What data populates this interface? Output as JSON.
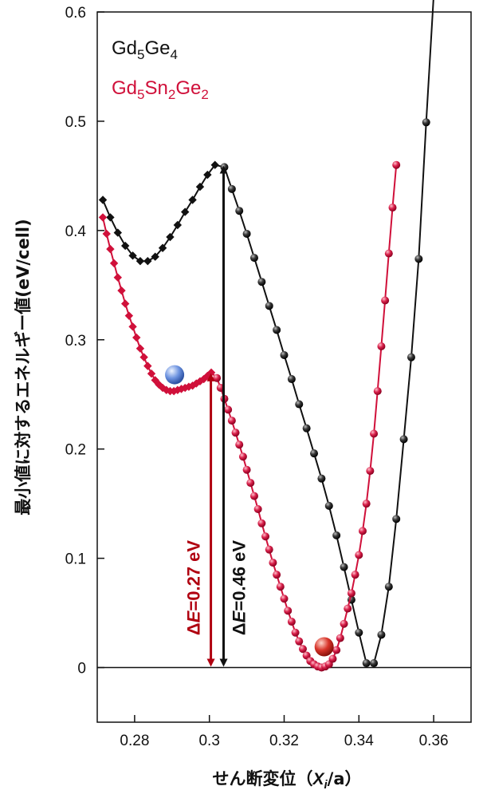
{
  "chart_data": {
    "type": "line",
    "xlabel": "せん断変位（Xi/a）",
    "xlabel_prefix": "せん断変位（",
    "xlabel_var": "X",
    "xlabel_sub": "i",
    "xlabel_suffix": "/a）",
    "ylabel": "最小値に対するエネルギー値(eV/cell)",
    "xlim": [
      0.27,
      0.37
    ],
    "ylim": [
      -0.05,
      0.6
    ],
    "xticks": [
      0.28,
      0.3,
      0.32,
      0.34,
      0.36
    ],
    "xtick_labels": [
      "0.28",
      "0.3",
      "0.32",
      "0.34",
      "0.36"
    ],
    "yticks": [
      0,
      0.1,
      0.2,
      0.3,
      0.4,
      0.5,
      0.6
    ],
    "ytick_labels": [
      "0",
      "0.1",
      "0.2",
      "0.3",
      "0.4",
      "0.5",
      "0.6"
    ],
    "grid": false,
    "legend_position": "top-left",
    "zero_line": true,
    "series": [
      {
        "name": "Gd5Ge4",
        "legend_parts": [
          [
            "Gd",
            ""
          ],
          [
            "5",
            "sub"
          ],
          [
            "Ge",
            ""
          ],
          [
            "4",
            "sub"
          ]
        ],
        "color": "#111111",
        "markers": [
          {
            "shape": "diamond",
            "x": [
              0.2715,
              0.2735,
              0.2755,
              0.2775,
              0.2795,
              0.2815,
              0.2835,
              0.2855,
              0.2875,
              0.2895,
              0.2915,
              0.2935,
              0.2955,
              0.2975,
              0.2995,
              0.3015
            ],
            "y": [
              0.428,
              0.412,
              0.398,
              0.386,
              0.377,
              0.372,
              0.372,
              0.376,
              0.384,
              0.394,
              0.405,
              0.417,
              0.428,
              0.44,
              0.451,
              0.46
            ]
          },
          {
            "shape": "sphere",
            "x": [
              0.304,
              0.306,
              0.308,
              0.31,
              0.312,
              0.314,
              0.316,
              0.318,
              0.32,
              0.322,
              0.324,
              0.326,
              0.328,
              0.33,
              0.332,
              0.334,
              0.336,
              0.338,
              0.34,
              0.342,
              0.344,
              0.346,
              0.348,
              0.35,
              0.352,
              0.354,
              0.356,
              0.358,
              0.36
            ],
            "y": [
              0.458,
              0.438,
              0.418,
              0.397,
              0.375,
              0.353,
              0.331,
              0.309,
              0.286,
              0.264,
              0.241,
              0.219,
              0.196,
              0.173,
              0.148,
              0.121,
              0.092,
              0.062,
              0.032,
              0.004,
              0.004,
              0.03,
              0.074,
              0.136,
              0.209,
              0.284,
              0.374,
              0.499,
              0.615
            ]
          }
        ]
      },
      {
        "name": "Gd5Sn2Ge2",
        "legend_parts": [
          [
            "Gd",
            ""
          ],
          [
            "5",
            "sub"
          ],
          [
            "Sn",
            ""
          ],
          [
            "2",
            "sub"
          ],
          [
            "Ge",
            ""
          ],
          [
            "2",
            "sub"
          ]
        ],
        "color": "#d0103a",
        "markers": [
          {
            "shape": "diamond",
            "x": [
              0.2715,
              0.2725,
              0.2735,
              0.2745,
              0.2755,
              0.2765,
              0.2775,
              0.2785,
              0.2795,
              0.2805,
              0.2815,
              0.2825,
              0.2835,
              0.2845,
              0.2855,
              0.2865,
              0.2875,
              0.2885,
              0.2895,
              0.2905,
              0.2915,
              0.2925,
              0.2935,
              0.2945,
              0.2955,
              0.2965,
              0.2975,
              0.2985,
              0.2995,
              0.3005
            ],
            "y": [
              0.412,
              0.397,
              0.383,
              0.37,
              0.357,
              0.345,
              0.333,
              0.322,
              0.312,
              0.302,
              0.292,
              0.284,
              0.276,
              0.269,
              0.263,
              0.259,
              0.256,
              0.254,
              0.253,
              0.253,
              0.254,
              0.255,
              0.256,
              0.257,
              0.258,
              0.26,
              0.262,
              0.264,
              0.267,
              0.27
            ]
          },
          {
            "shape": "sphere",
            "x": [
              0.302,
              0.303,
              0.304,
              0.305,
              0.306,
              0.307,
              0.308,
              0.309,
              0.31,
              0.311,
              0.312,
              0.313,
              0.314,
              0.315,
              0.316,
              0.317,
              0.318,
              0.319,
              0.32,
              0.321,
              0.322,
              0.323,
              0.324,
              0.325,
              0.326,
              0.327,
              0.328,
              0.329,
              0.33,
              0.331,
              0.332,
              0.333,
              0.334,
              0.335,
              0.336,
              0.337,
              0.338,
              0.339,
              0.34,
              0.341,
              0.342,
              0.343,
              0.344,
              0.345,
              0.346,
              0.347,
              0.348,
              0.349,
              0.35
            ],
            "y": [
              0.265,
              0.256,
              0.246,
              0.236,
              0.226,
              0.215,
              0.204,
              0.193,
              0.181,
              0.169,
              0.157,
              0.145,
              0.132,
              0.12,
              0.108,
              0.096,
              0.085,
              0.074,
              0.063,
              0.052,
              0.042,
              0.032,
              0.024,
              0.017,
              0.011,
              0.006,
              0.003,
              0.001,
              0.0,
              0.001,
              0.003,
              0.008,
              0.016,
              0.027,
              0.04,
              0.054,
              0.068,
              0.085,
              0.103,
              0.125,
              0.15,
              0.18,
              0.214,
              0.253,
              0.294,
              0.336,
              0.379,
              0.421,
              0.46
            ]
          }
        ]
      }
    ],
    "annotations": [
      {
        "text": "ΔE=0.27 eV",
        "prefix": "Δ",
        "var": "E",
        "rest": "=0.27 eV",
        "color": "#b00010",
        "x": 0.3004,
        "y0": 0.0,
        "y1": 0.27
      },
      {
        "text": "ΔE=0.46 eV",
        "prefix": "Δ",
        "var": "E",
        "rest": "=0.46 eV",
        "color": "#111111",
        "x": 0.3038,
        "y0": 0.0,
        "y1": 0.46
      }
    ],
    "balls": [
      {
        "color": "blue",
        "x": 0.2907,
        "y": 0.268
      },
      {
        "color": "red",
        "x": 0.3307,
        "y": 0.019
      }
    ]
  }
}
